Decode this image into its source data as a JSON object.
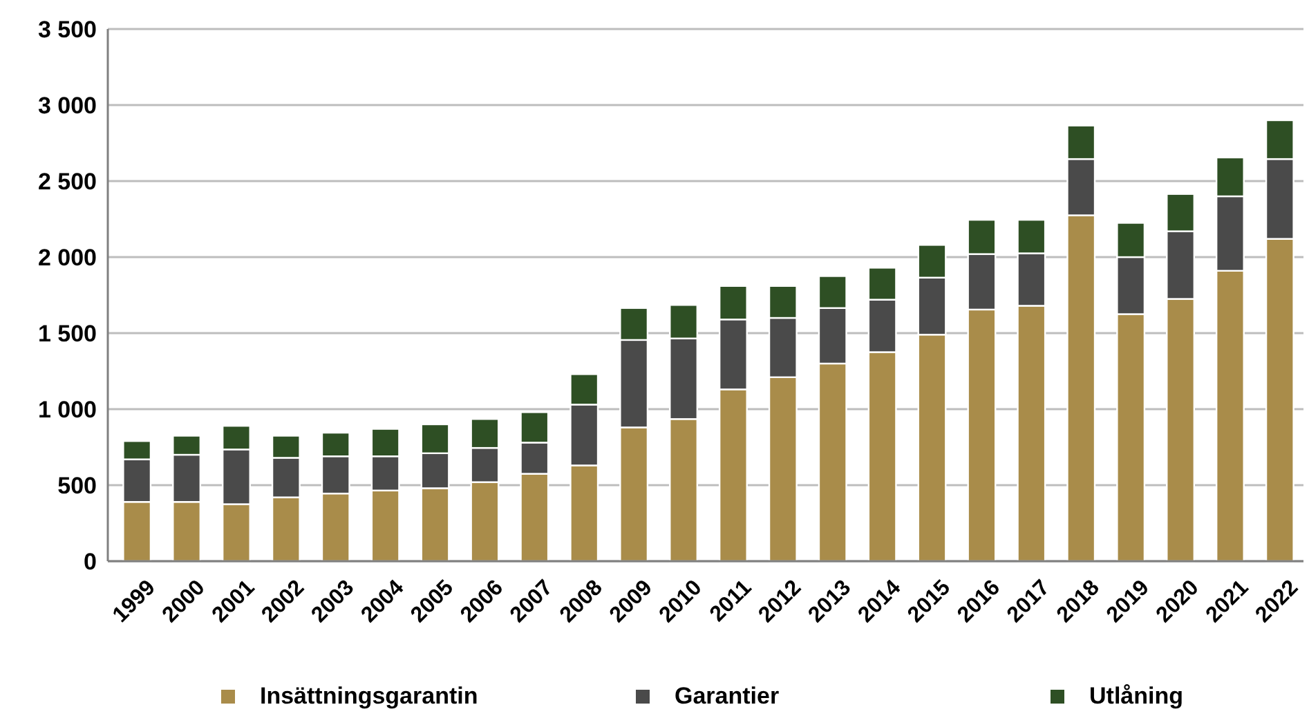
{
  "chart_data": {
    "type": "bar",
    "stacked": true,
    "categories": [
      "1999",
      "2000",
      "2001",
      "2002",
      "2003",
      "2004",
      "2005",
      "2006",
      "2007",
      "2008",
      "2009",
      "2010",
      "2011",
      "2012",
      "2013",
      "2014",
      "2015",
      "2016",
      "2017",
      "2018",
      "2019",
      "2020",
      "2021",
      "2022"
    ],
    "series": [
      {
        "name": "Insättningsgarantin",
        "color": "#a98c4a",
        "values": [
          390,
          390,
          375,
          420,
          445,
          465,
          480,
          520,
          575,
          630,
          880,
          935,
          1130,
          1210,
          1300,
          1375,
          1490,
          1655,
          1680,
          2275,
          1625,
          1725,
          1910,
          2120
        ]
      },
      {
        "name": "Garantier",
        "color": "#4a4a4a",
        "values": [
          280,
          310,
          360,
          260,
          245,
          225,
          230,
          225,
          205,
          400,
          575,
          530,
          460,
          390,
          365,
          345,
          375,
          365,
          345,
          370,
          375,
          445,
          490,
          525
        ]
      },
      {
        "name": "Utlåning",
        "color": "#2e4f24",
        "values": [
          120,
          125,
          155,
          145,
          155,
          180,
          190,
          190,
          200,
          200,
          210,
          220,
          220,
          210,
          210,
          210,
          215,
          225,
          220,
          220,
          225,
          245,
          255,
          255
        ]
      }
    ],
    "ylim": [
      0,
      3500
    ],
    "yticks": [
      0,
      500,
      {
        "value": 1000,
        "label": "1 000"
      },
      {
        "value": 1500,
        "label": "1 500"
      },
      {
        "value": 2000,
        "label": "2 000"
      },
      {
        "value": 2500,
        "label": "2 500"
      },
      {
        "value": 3000,
        "label": "3 000"
      },
      {
        "value": 3500,
        "label": "3 500"
      }
    ],
    "grid": "y",
    "legend": "bottom"
  }
}
